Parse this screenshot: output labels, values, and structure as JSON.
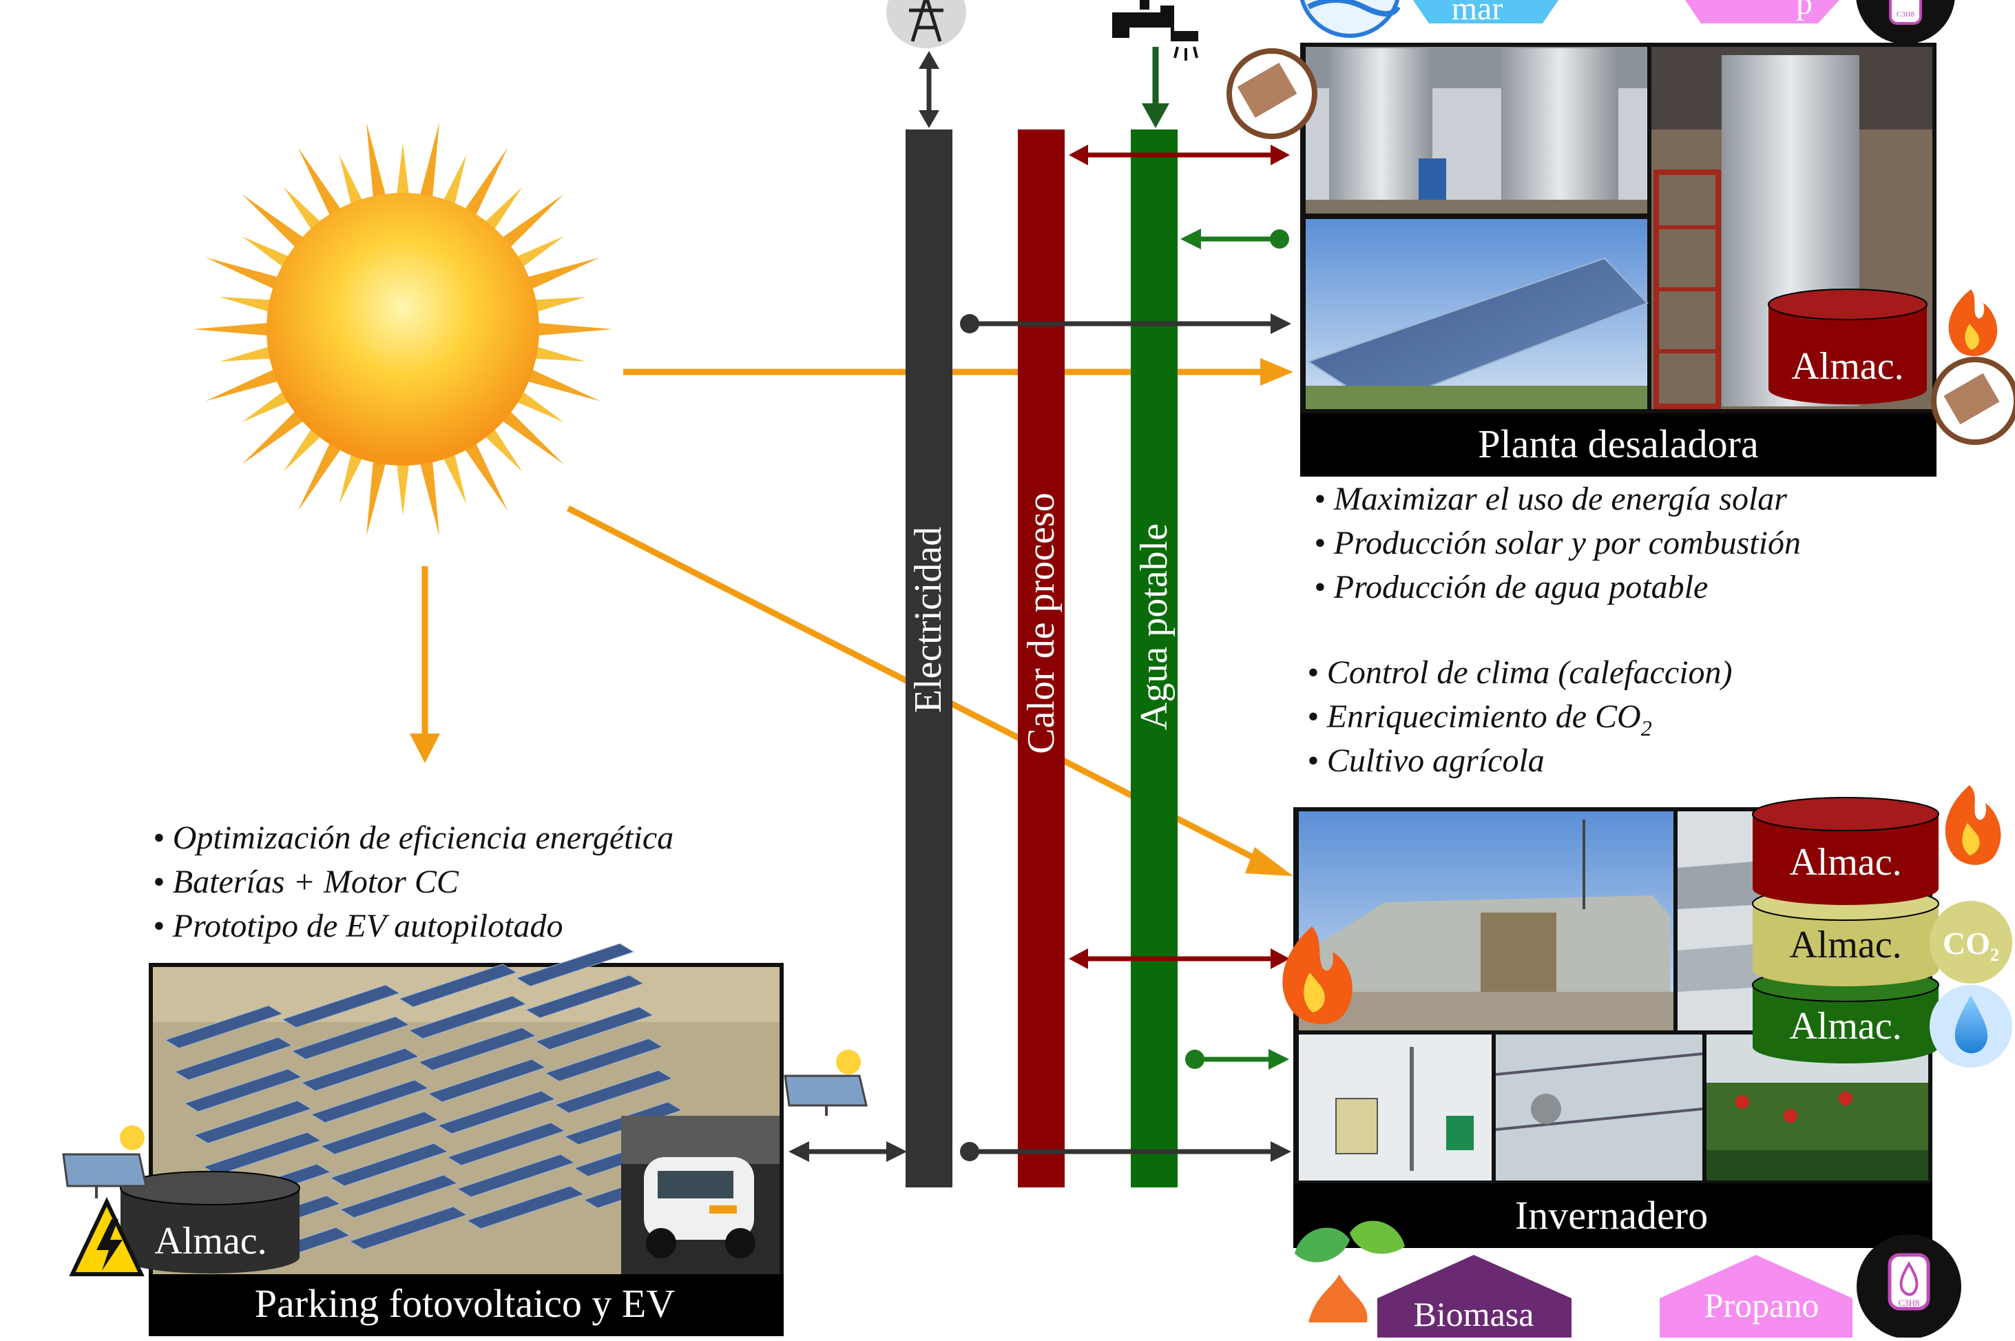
{
  "buses": {
    "electricity": "Electricidad",
    "heat": "Calor de proceso",
    "water": "Agua potable"
  },
  "desal": {
    "title": "Planta desaladora",
    "storage": "Almac.",
    "bullets": [
      "• Maximizar el uso de energía solar",
      "• Producción solar y por combustión",
      "• Producción de agua potable"
    ]
  },
  "greenhouse": {
    "title": "Invernadero",
    "storage": [
      "Almac.",
      "Almac.",
      "Almac."
    ],
    "bullets": [
      "• Control de clima (calefaccion)",
      "• Enriquecimiento de CO",
      "• Cultivo agrícola"
    ],
    "co2_sub": "2",
    "co2_badge": "CO",
    "co2_badge_sub": "2"
  },
  "parking": {
    "title": "Parking fotovoltaico y EV",
    "storage": "Almac.",
    "bullets": [
      "• Optimización de eficiencia energética",
      "• Baterías + Motor CC",
      "• Prototipo de EV autopilotado"
    ]
  },
  "inputs": {
    "sea": "mar",
    "biomass": "Biomasa",
    "propane": "Propano",
    "propane_top": "p",
    "gas_label": "C3H8"
  },
  "colors": {
    "electricity": "#333333",
    "heat": "#8b0000",
    "water": "#006400",
    "solar": "#f39c12",
    "label_bar": "#000000"
  }
}
